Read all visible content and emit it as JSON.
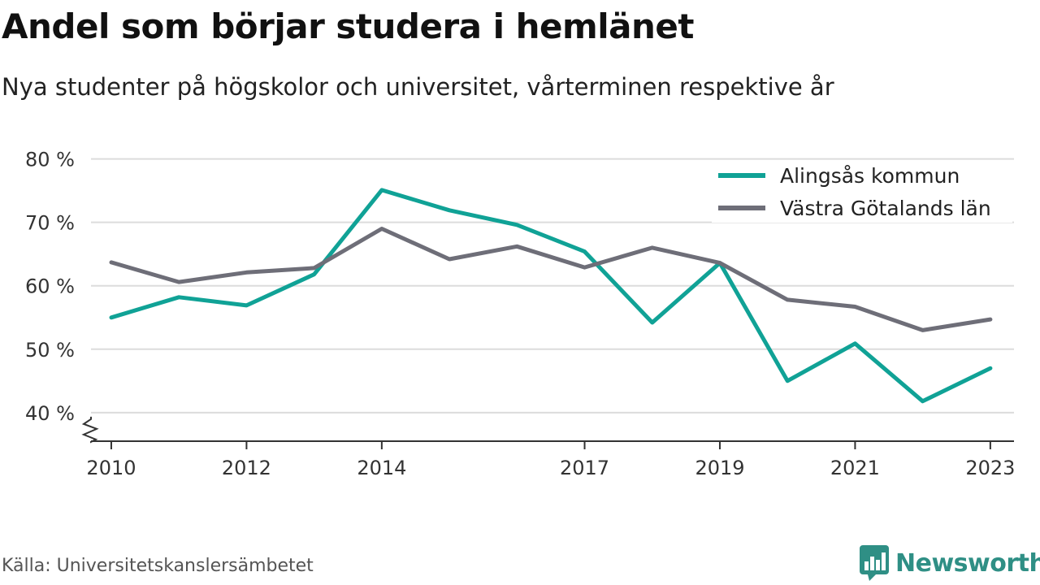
{
  "header": {
    "title": "Andel som börjar studera i hemlänet",
    "subtitle": "Nya studenter på högskolor och universitet, vårterminen respektive år"
  },
  "footer": {
    "source": "Källa: Universitetskanslersämbetet",
    "brand": "Newsworthy",
    "brand_color": "#2f8f85",
    "brand_icon": "bar-chart-speech-bubble-icon"
  },
  "chart_data": {
    "type": "line",
    "x": [
      2010,
      2011,
      2012,
      2013,
      2014,
      2015,
      2016,
      2017,
      2018,
      2019,
      2020,
      2021,
      2022,
      2023
    ],
    "x_ticks": [
      "2010",
      "2012",
      "2014",
      "2017",
      "2019",
      "2021",
      "2023"
    ],
    "y_ticks": [
      "40 %",
      "50 %",
      "60 %",
      "70 %",
      "80 %"
    ],
    "y_tick_values": [
      40,
      50,
      60,
      70,
      80
    ],
    "ylim": [
      35.5,
      82
    ],
    "xlim": [
      2009.7,
      2023.35
    ],
    "axis_break": true,
    "grid": true,
    "legend_position": "top-right",
    "series": [
      {
        "name": "Alingsås kommun",
        "color": "#10a296",
        "values": [
          55.0,
          58.2,
          56.9,
          61.8,
          75.1,
          71.9,
          69.6,
          65.4,
          54.2,
          63.6,
          45.0,
          50.9,
          41.8,
          47.0
        ]
      },
      {
        "name": "Västra Götalands län",
        "color": "#6e6e78",
        "values": [
          63.7,
          60.6,
          62.1,
          62.8,
          69.0,
          64.2,
          66.2,
          62.9,
          66.0,
          63.6,
          57.8,
          56.7,
          53.0,
          54.7
        ]
      }
    ]
  }
}
